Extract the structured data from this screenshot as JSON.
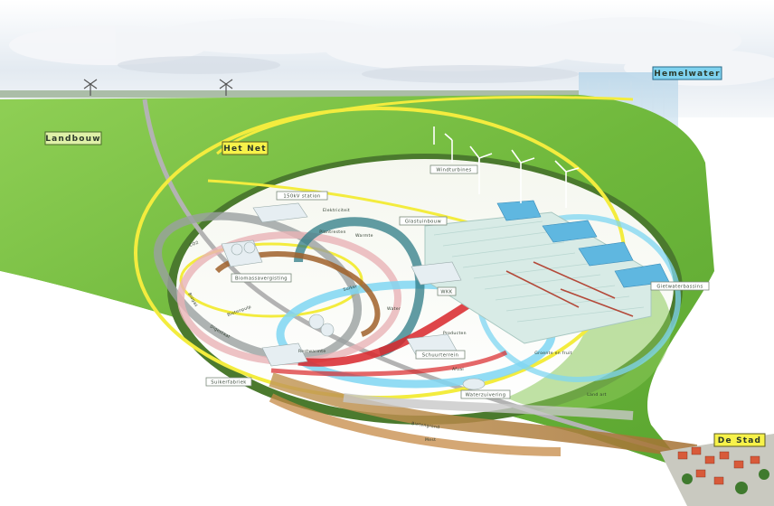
{
  "labels": {
    "hemelwater": "Hemelwater",
    "landbouw": "Landbouw",
    "het_net": "Het Net",
    "windturbines": "Windturbines",
    "station": "150kV station",
    "elektriciteit": "Elektriciteit",
    "glastuinbouw": "Glastuinbouw",
    "plantresten": "Plantresten",
    "biomassavergisting": "Biomassavergisting",
    "wkk": "WKK",
    "gietwaterbassins": "Gietwaterbassins",
    "groente_en_fruit": "Groente en fruit",
    "suikerfabriek": "Suikerfabriek",
    "schuurterrein": "Schuurterrein",
    "waterzuivering": "Waterzuivering",
    "land_art": "Land art",
    "de_stad": "De Stad"
  },
  "flows": {
    "co2": "CO2",
    "warmte": "Warmte",
    "suiker": "Suiker",
    "water": "Water",
    "bietenpulp": "Bietenpulp",
    "bietengrond": "Bietengrond",
    "producten": "Producten",
    "afval": "Afval",
    "biogas": "Biogas",
    "digestaat": "Digestaat",
    "mest": "Mest",
    "restwarmte": "Restwarmte"
  },
  "colors": {
    "sky": "#e8eef4",
    "grass": "#7cc24a",
    "yellow_loop": "#f3ec3e",
    "blue_loop": "#7fd6f2",
    "brown_loop": "#a0602a",
    "red_loop": "#d8262a",
    "grey_loop": "#9aa0a0"
  }
}
